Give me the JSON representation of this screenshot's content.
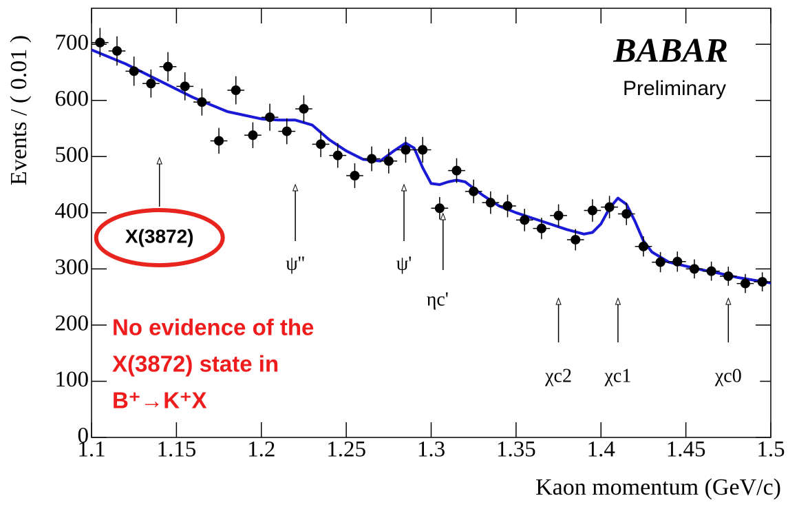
{
  "chart_data": {
    "type": "errorbar",
    "ylabel": "Events / ( 0.01 )",
    "xlabel": "Kaon momentum (GeV/c)",
    "logo": "BABAR",
    "subtitle": "Preliminary",
    "note_lines": [
      "No evidence of the",
      "X(3872) state in",
      "B⁺→K⁺X"
    ],
    "xlim": [
      1.1,
      1.5
    ],
    "xticks": [
      1.1,
      1.15,
      1.2,
      1.25,
      1.3,
      1.35,
      1.4,
      1.45,
      1.5
    ],
    "ylim": [
      0,
      764
    ],
    "yticks": [
      0,
      100,
      200,
      300,
      400,
      500,
      600,
      700
    ],
    "bin_width": 0.01,
    "x": [
      1.105,
      1.115,
      1.125,
      1.135,
      1.145,
      1.155,
      1.165,
      1.175,
      1.185,
      1.195,
      1.205,
      1.215,
      1.225,
      1.235,
      1.245,
      1.255,
      1.265,
      1.275,
      1.285,
      1.295,
      1.305,
      1.315,
      1.325,
      1.335,
      1.345,
      1.355,
      1.365,
      1.375,
      1.385,
      1.395,
      1.405,
      1.415,
      1.425,
      1.435,
      1.445,
      1.455,
      1.465,
      1.475,
      1.485,
      1.495
    ],
    "values": [
      703,
      688,
      652,
      630,
      660,
      625,
      597,
      528,
      618,
      538,
      570,
      545,
      585,
      522,
      502,
      466,
      496,
      492,
      512,
      512,
      408,
      475,
      438,
      418,
      412,
      387,
      372,
      395,
      352,
      404,
      410,
      398,
      340,
      312,
      313,
      300,
      296,
      287,
      274,
      277
    ],
    "errors": [
      26,
      26,
      26,
      25,
      26,
      25,
      24,
      23,
      25,
      23,
      24,
      23,
      24,
      23,
      22,
      22,
      22,
      22,
      23,
      23,
      20,
      22,
      21,
      20,
      20,
      20,
      19,
      20,
      19,
      20,
      20,
      20,
      18,
      18,
      18,
      17,
      17,
      17,
      17,
      17
    ],
    "color": "#000000",
    "fit": {
      "color": "#1a1ad6",
      "x": [
        1.1,
        1.12,
        1.14,
        1.16,
        1.18,
        1.2,
        1.21,
        1.22,
        1.23,
        1.24,
        1.25,
        1.26,
        1.27,
        1.278,
        1.285,
        1.29,
        1.295,
        1.3,
        1.305,
        1.31,
        1.315,
        1.32,
        1.33,
        1.34,
        1.35,
        1.36,
        1.37,
        1.38,
        1.39,
        1.395,
        1.4,
        1.405,
        1.41,
        1.415,
        1.42,
        1.425,
        1.43,
        1.44,
        1.45,
        1.46,
        1.47,
        1.48,
        1.49,
        1.5
      ],
      "values": [
        690,
        665,
        635,
        605,
        580,
        567,
        565,
        565,
        556,
        530,
        510,
        495,
        492,
        510,
        524,
        515,
        480,
        452,
        450,
        455,
        458,
        455,
        432,
        412,
        400,
        390,
        380,
        370,
        362,
        365,
        380,
        408,
        426,
        415,
        385,
        350,
        330,
        312,
        305,
        298,
        292,
        285,
        280,
        275
      ]
    },
    "annotations": [
      {
        "label": "X(3872)",
        "x": 1.14
      },
      {
        "label": "ψ''",
        "x": 1.22
      },
      {
        "label": "ψ'",
        "x": 1.284
      },
      {
        "label": "ηc'",
        "x": 1.307
      },
      {
        "label": "χc2",
        "x": 1.375
      },
      {
        "label": "χc1",
        "x": 1.41
      },
      {
        "label": "χc0",
        "x": 1.475
      }
    ]
  }
}
